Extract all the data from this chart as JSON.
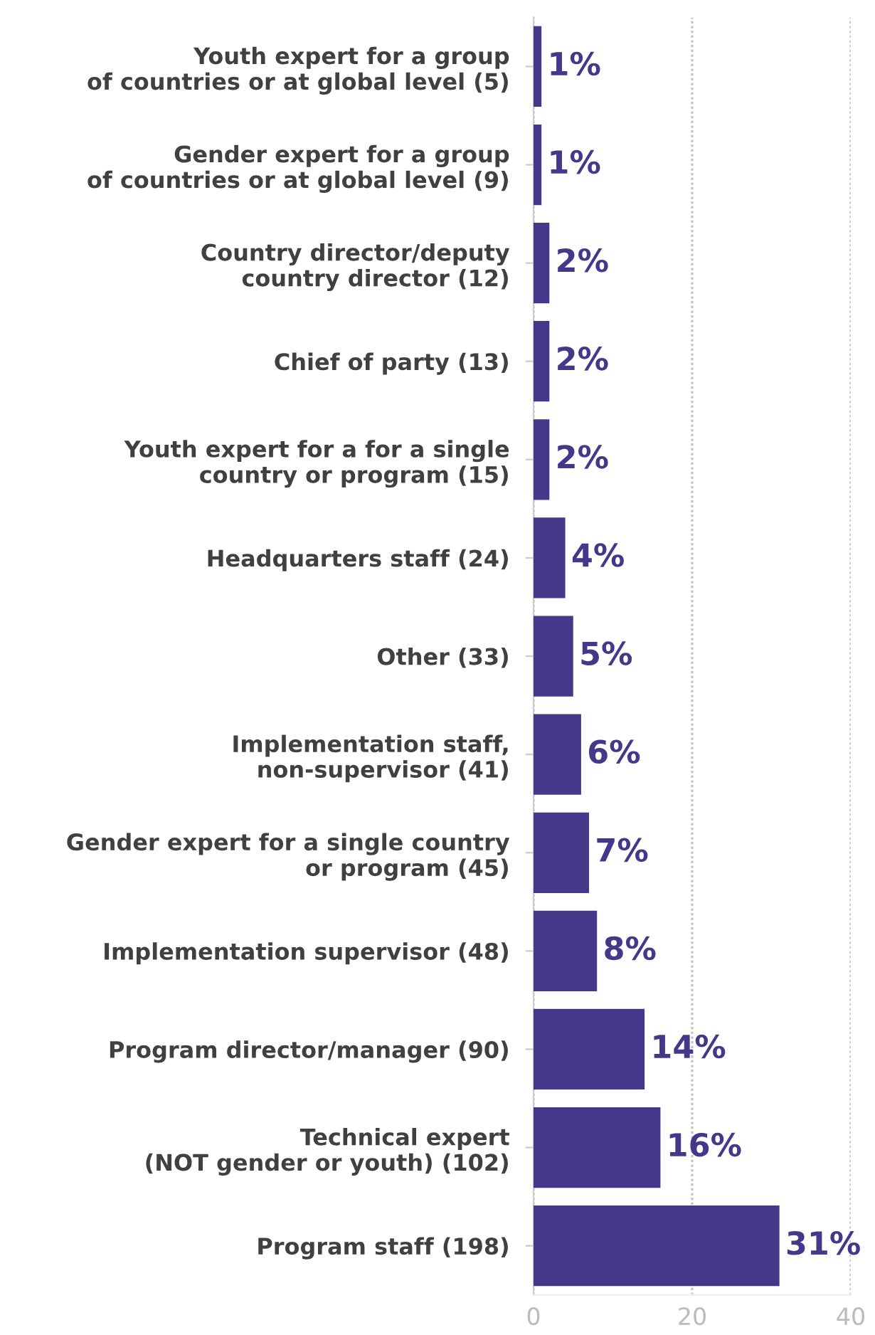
{
  "chart_data": {
    "type": "bar",
    "orientation": "horizontal",
    "categories": [
      "Youth expert for a group\nof countries or at global level (5)",
      "Gender expert for a group\nof countries or at global level (9)",
      "Country director/deputy\ncountry director (12)",
      "Chief of party (13)",
      "Youth expert for a for a single\ncountry or program (15)",
      "Headquarters staff (24)",
      "Other (33)",
      "Implementation staff,\nnon-supervisor (41)",
      "Gender expert for a single country\nor program (45)",
      "Implementation supervisor (48)",
      "Program director/manager (90)",
      "Technical expert\n(NOT gender or youth) (102)",
      "Program staff (198)"
    ],
    "values": [
      1,
      1,
      2,
      2,
      2,
      4,
      5,
      6,
      7,
      8,
      14,
      16,
      31
    ],
    "value_labels": [
      "1%",
      "1%",
      "2%",
      "2%",
      "2%",
      "4%",
      "5%",
      "6%",
      "7%",
      "8%",
      "14%",
      "16%",
      "31%"
    ],
    "color": "#47378a",
    "xlim": [
      0,
      40
    ],
    "xticks": [
      0,
      20,
      40
    ],
    "grid": "x"
  }
}
